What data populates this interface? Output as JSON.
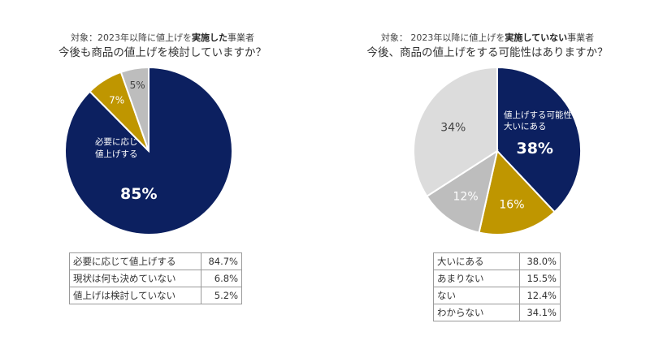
{
  "chart_data": [
    {
      "type": "pie",
      "subtitle": {
        "prefix": "対象：2023年以降に値上げを",
        "emphasis": "実施した",
        "suffix": "事業者"
      },
      "title": "今後も商品の値上げを検討していますか？",
      "slices": [
        {
          "label": "必要に応じて値上げする",
          "value": 84.7,
          "pie_label": "85%",
          "inner_label": [
            "必要に応じて",
            "値上げする"
          ]
        },
        {
          "label": "現状は何も決めていない",
          "value": 6.8,
          "pie_label": "7%"
        },
        {
          "label": "値上げは検討していない",
          "value": 5.2,
          "pie_label": "5%"
        }
      ],
      "table": [
        {
          "label": "必要に応じて値上げする",
          "value": "84.7%"
        },
        {
          "label": "現状は何も決めていない",
          "value": "6.8%"
        },
        {
          "label": "値上げは検討していない",
          "value": "5.2%"
        }
      ],
      "colors": [
        "#0c2060",
        "#bf9600",
        "#bdbdbd"
      ]
    },
    {
      "type": "pie",
      "subtitle": {
        "prefix": "対象： 2023年以降に値上げを",
        "emphasis": "実施していない",
        "suffix": "事業者"
      },
      "title": "今後、商品の値上げをする可能性はありますか？",
      "slices": [
        {
          "label": "大いにある",
          "value": 38.0,
          "pie_label": "38%",
          "inner_label": [
            "値上げする可能性",
            "大いにある"
          ]
        },
        {
          "label": "あまりない",
          "value": 15.5,
          "pie_label": "16%"
        },
        {
          "label": "ない",
          "value": 12.4,
          "pie_label": "12%"
        },
        {
          "label": "わからない",
          "value": 34.1,
          "pie_label": "34%"
        }
      ],
      "table": [
        {
          "label": "大いにある",
          "value": "38.0%"
        },
        {
          "label": "あまりない",
          "value": "15.5%"
        },
        {
          "label": "ない",
          "value": "12.4%"
        },
        {
          "label": "わからない",
          "value": "34.1%"
        }
      ],
      "colors": [
        "#0c2060",
        "#bf9600",
        "#bdbdbd",
        "#dcdcdc"
      ]
    }
  ]
}
